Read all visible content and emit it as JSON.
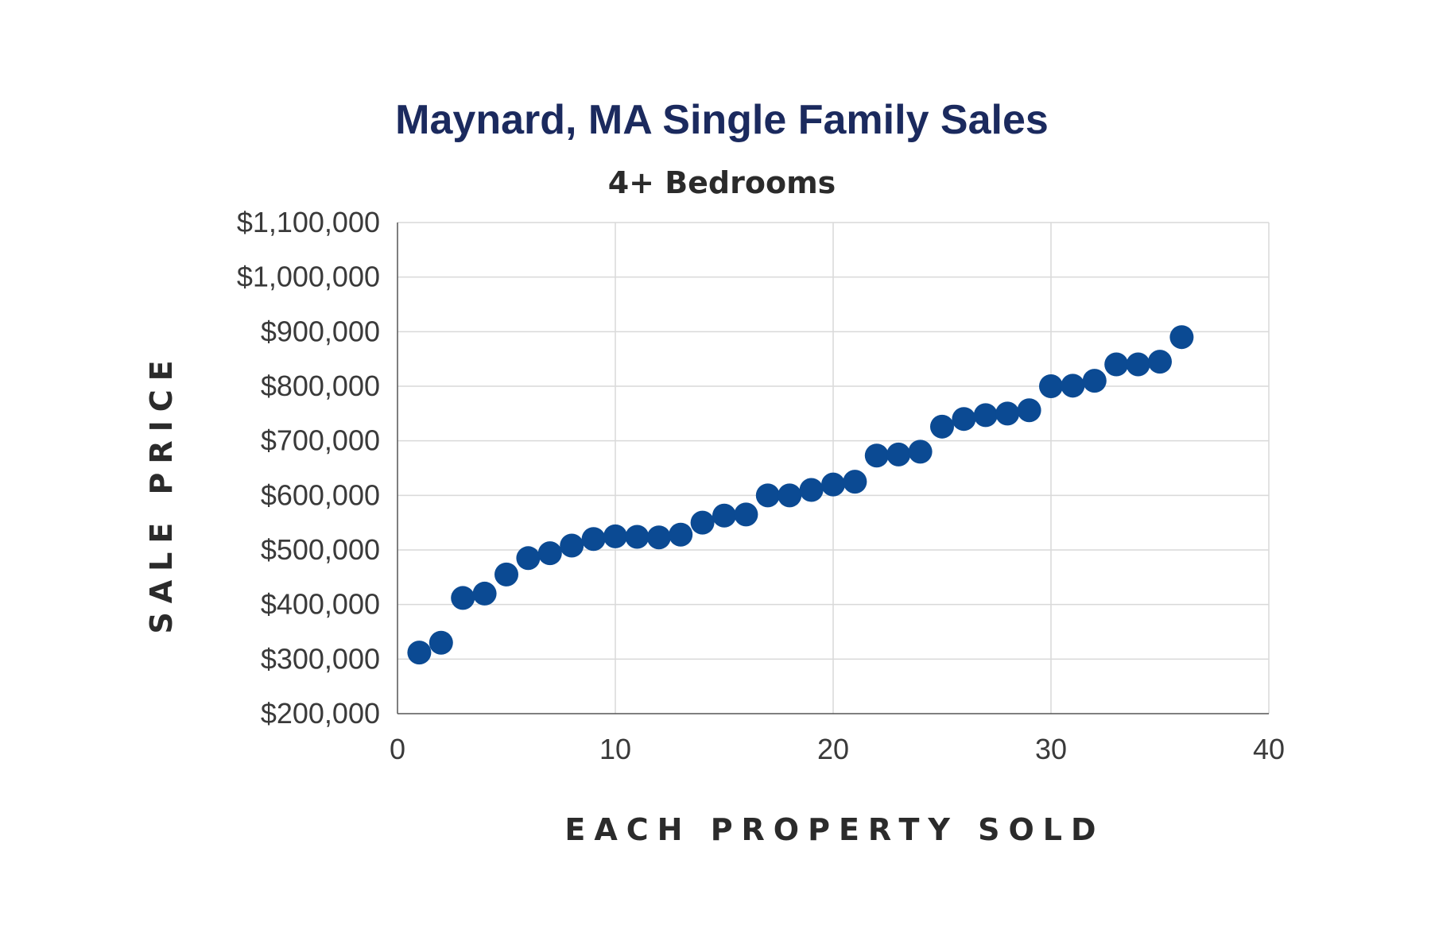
{
  "chart_data": {
    "type": "scatter",
    "title": "Maynard, MA Single Family Sales",
    "subtitle": "4+ Bedrooms",
    "xlabel": "EACH PROPERTY SOLD",
    "ylabel": "SALE PRICE",
    "xlim": [
      0,
      40
    ],
    "ylim": [
      200000,
      1100000
    ],
    "x_ticks": [
      "0",
      "10",
      "20",
      "30",
      "40"
    ],
    "y_ticks": [
      "$200,000",
      "$300,000",
      "$400,000",
      "$500,000",
      "$600,000",
      "$700,000",
      "$800,000",
      "$900,000",
      "$1,000,000",
      "$1,100,000"
    ],
    "grid": true,
    "marker_color": "#0b4a93",
    "series": [
      {
        "x": [
          1,
          2,
          3,
          4,
          5,
          6,
          7,
          8,
          9,
          10,
          11,
          12,
          13,
          14,
          15,
          16,
          17,
          18,
          19,
          20,
          21,
          22,
          23,
          24,
          25,
          26,
          27,
          28,
          29,
          30,
          31,
          32,
          33,
          34,
          35,
          36
        ],
        "y": [
          312000,
          330000,
          412000,
          420000,
          455000,
          485000,
          494000,
          508000,
          520000,
          525000,
          524000,
          523000,
          528000,
          550000,
          563000,
          565000,
          600000,
          600000,
          610000,
          620000,
          625000,
          673000,
          675000,
          680000,
          726000,
          740000,
          747000,
          750000,
          756000,
          800000,
          801000,
          810000,
          840000,
          840000,
          845000,
          890000
        ]
      }
    ]
  }
}
